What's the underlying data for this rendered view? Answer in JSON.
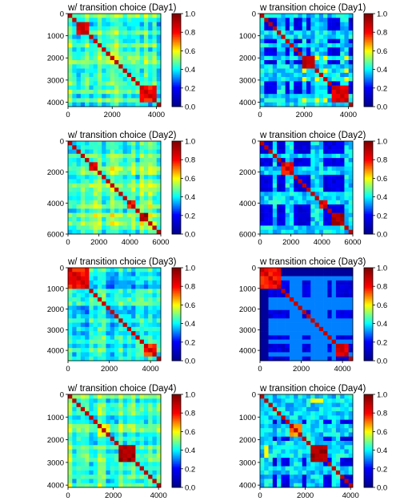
{
  "colors": {
    "colormap": [
      "#00008f",
      "#0000ff",
      "#00ffff",
      "#ffff00",
      "#ff0000",
      "#800000"
    ],
    "background": "#ffffff",
    "axis": "#000000"
  },
  "colorbar": {
    "range": [
      0.0,
      1.0
    ],
    "ticks": [
      "0.0",
      "0.2",
      "0.4",
      "0.6",
      "0.8",
      "1.0"
    ]
  },
  "chart_data": [
    {
      "type": "heatmap",
      "title": "w/ transition choice (Day1)",
      "extent": [
        0,
        4200
      ],
      "n_blocks": 22,
      "base_level": 0.45,
      "style": "smooth",
      "seed": 11,
      "x_ticks": [
        "0",
        "2000",
        "4000"
      ],
      "y_ticks": [
        "0",
        "1000",
        "2000",
        "3000",
        "4000"
      ],
      "clusters": [
        {
          "range": [
            550,
            800
          ],
          "value": 0.85
        },
        {
          "range": [
            3400,
            3850
          ],
          "value": 0.8
        }
      ]
    },
    {
      "type": "heatmap",
      "title": "w transition choice (Day1)",
      "extent": [
        0,
        4200
      ],
      "n_blocks": 22,
      "base_level": 0.1,
      "style": "striped",
      "seed": 12,
      "x_ticks": [
        "0",
        "2000",
        "4000"
      ],
      "y_ticks": [
        "0",
        "1000",
        "2000",
        "3000",
        "4000"
      ],
      "clusters": [
        {
          "range": [
            2000,
            2300
          ],
          "value": 0.9
        },
        {
          "range": [
            3400,
            3850
          ],
          "value": 0.85
        }
      ]
    },
    {
      "type": "heatmap",
      "title": "w/ transition choice (Day2)",
      "extent": [
        0,
        6000
      ],
      "n_blocks": 22,
      "base_level": 0.45,
      "style": "smooth",
      "seed": 21,
      "x_ticks": [
        "0",
        "2000",
        "4000",
        "6000"
      ],
      "y_ticks": [
        "0",
        "2000",
        "4000",
        "6000"
      ],
      "clusters": [
        {
          "range": [
            1600,
            1900
          ],
          "value": 0.8
        },
        {
          "range": [
            3900,
            4150
          ],
          "value": 0.8
        },
        {
          "range": [
            4800,
            5150
          ],
          "value": 0.95
        }
      ]
    },
    {
      "type": "heatmap",
      "title": "w transition choice  (Day2)",
      "extent": [
        0,
        6000
      ],
      "n_blocks": 22,
      "base_level": 0.1,
      "style": "striped",
      "seed": 22,
      "x_ticks": [
        "0",
        "2000",
        "4000",
        "6000"
      ],
      "y_ticks": [
        "0",
        "2000",
        "4000",
        "6000"
      ],
      "clusters": [
        {
          "range": [
            1600,
            2100
          ],
          "value": 0.8
        },
        {
          "range": [
            3900,
            4200
          ],
          "value": 0.8
        },
        {
          "range": [
            4800,
            5300
          ],
          "value": 0.95
        }
      ]
    },
    {
      "type": "heatmap",
      "title": "w/ transition choice  (Day3)",
      "extent": [
        0,
        4500
      ],
      "n_blocks": 22,
      "base_level": 0.4,
      "style": "smooth",
      "seed": 31,
      "x_ticks": [
        "0",
        "2000",
        "4000"
      ],
      "y_ticks": [
        "0",
        "1000",
        "2000",
        "3000",
        "4000"
      ],
      "clusters": [
        {
          "range": [
            200,
            1000
          ],
          "value": 0.8
        },
        {
          "range": [
            3800,
            4150
          ],
          "value": 0.75
        }
      ]
    },
    {
      "type": "heatmap",
      "title": "w transition choice  (Day3)",
      "extent": [
        0,
        4500
      ],
      "n_blocks": 22,
      "base_level": 0.05,
      "style": "blocky",
      "seed": 32,
      "x_ticks": [
        "0",
        "2000",
        "4000"
      ],
      "y_ticks": [
        "0",
        "1000",
        "2000",
        "3000",
        "4000"
      ],
      "clusters": [
        {
          "range": [
            200,
            1000
          ],
          "value": 0.8
        },
        {
          "range": [
            3800,
            4150
          ],
          "value": 0.85
        }
      ]
    },
    {
      "type": "heatmap",
      "title": "w/ transition choice  (Day4)",
      "extent": [
        0,
        4100
      ],
      "n_blocks": 22,
      "base_level": 0.45,
      "style": "smooth",
      "seed": 41,
      "x_ticks": [
        "0",
        "2000",
        "4000"
      ],
      "y_ticks": [
        "0",
        "1000",
        "2000",
        "3000",
        "4000"
      ],
      "clusters": [
        {
          "range": [
            1400,
            1700
          ],
          "value": 0.6
        },
        {
          "range": [
            2300,
            2900
          ],
          "value": 0.95
        }
      ]
    },
    {
      "type": "heatmap",
      "title": "w transition choice  (Day4)",
      "extent": [
        0,
        4100
      ],
      "n_blocks": 22,
      "base_level": 0.1,
      "style": "striped",
      "seed": 42,
      "x_ticks": [
        "0",
        "2000",
        "4000"
      ],
      "y_ticks": [
        "0",
        "1000",
        "2000",
        "3000",
        "4000"
      ],
      "clusters": [
        {
          "range": [
            1400,
            1750
          ],
          "value": 0.7
        },
        {
          "range": [
            2300,
            2900
          ],
          "value": 0.95
        }
      ]
    }
  ]
}
